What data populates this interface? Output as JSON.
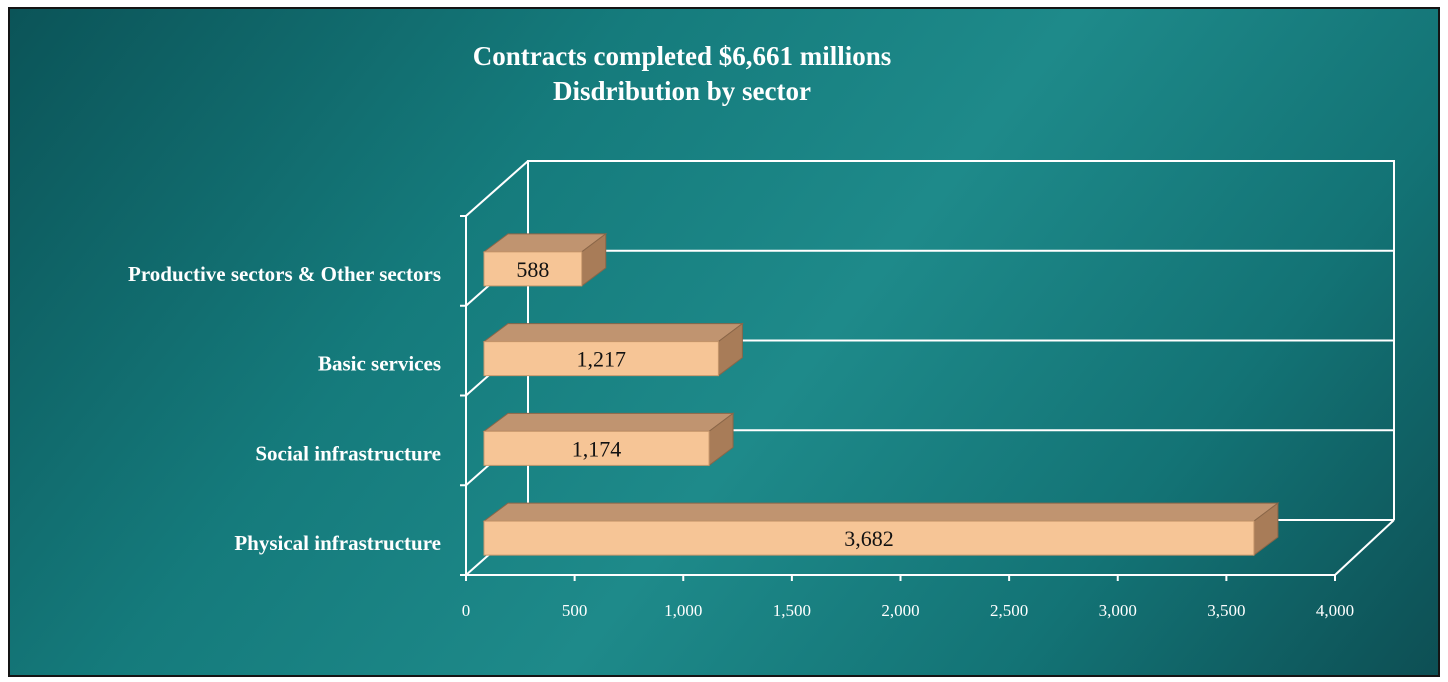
{
  "chart_data": {
    "type": "bar",
    "orientation": "horizontal",
    "style": "3d",
    "title": [
      "Contracts completed $6,661 millions",
      "Disdribution by sector"
    ],
    "categories": [
      "Physical infrastructure",
      "Social infrastructure",
      "Basic services",
      "Productive sectors & Other sectors"
    ],
    "values": [
      3682,
      1174,
      1217,
      588
    ],
    "data_labels": [
      "3,682",
      "1,174",
      "1,217",
      "588"
    ],
    "xlim": [
      0,
      4000
    ],
    "x_ticks": [
      0,
      500,
      1000,
      1500,
      2000,
      2500,
      3000,
      3500,
      4000
    ],
    "x_tick_labels": [
      "0",
      "500",
      "1,000",
      "1,500",
      "2,000",
      "2,500",
      "3,000",
      "3,500",
      "4,000"
    ],
    "grid": true,
    "colors": {
      "background": "#167a7b",
      "bar_front": "#f6c596",
      "bar_top": "#c09470",
      "bar_side": "#a87c58",
      "axis": "#ffffff"
    }
  }
}
